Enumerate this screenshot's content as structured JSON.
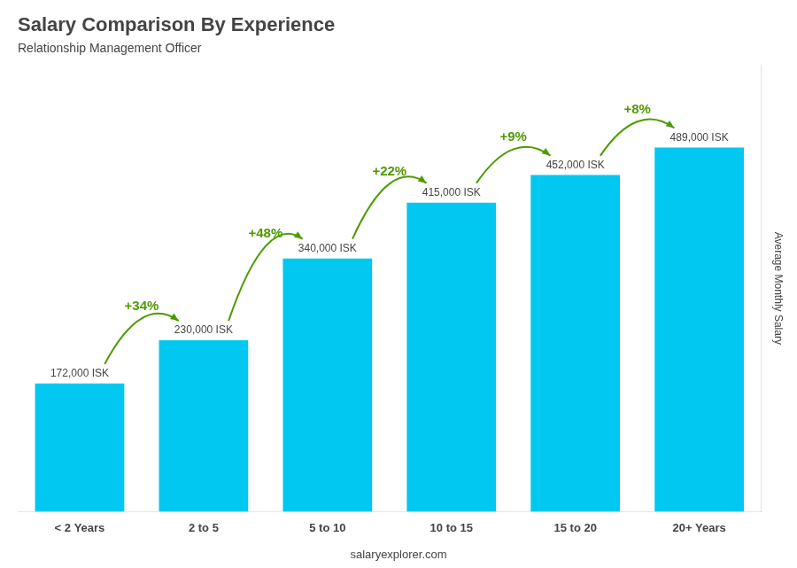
{
  "chart_data": {
    "type": "bar",
    "title": "Salary Comparison By Experience",
    "subtitle": "Relationship Management Officer",
    "ylabel": "Average Monthly Salary",
    "categories": [
      "< 2 Years",
      "2 to 5",
      "5 to 10",
      "10 to 15",
      "15 to 20",
      "20+ Years"
    ],
    "values": [
      172000,
      230000,
      340000,
      415000,
      452000,
      489000
    ],
    "value_labels": [
      "172,000 ISK",
      "230,000 ISK",
      "340,000 ISK",
      "415,000 ISK",
      "452,000 ISK",
      "489,000 ISK"
    ],
    "data_labels": true,
    "color": "#00c8f0",
    "ylim": [
      0,
      600000
    ],
    "grid": false,
    "tick_labels": "x",
    "annotations": [
      "+34%",
      "+48%",
      "+22%",
      "+9%",
      "+8%"
    ],
    "footer": "salaryexplorer.com"
  }
}
